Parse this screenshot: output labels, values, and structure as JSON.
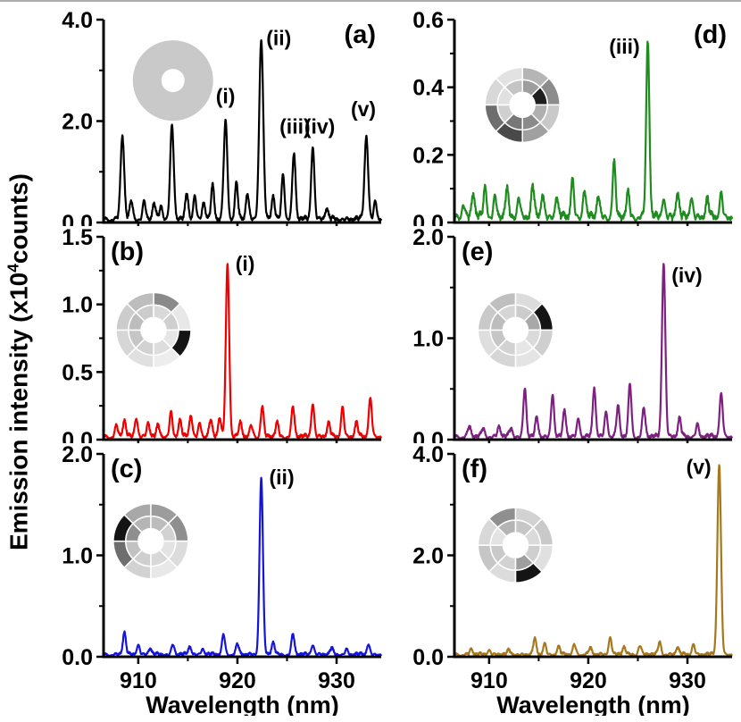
{
  "figure": {
    "x_axis_label": "Wavelength (nm)",
    "ylabel": "Emission intensity (x10^4 counts)",
    "y_axis_label": {
      "pre": "Emission intensity (x10",
      "sup": "4",
      "post": "counts)"
    },
    "background": "#ffffff",
    "axis_color": "#000000"
  },
  "chart_data": [
    {
      "id": "a",
      "type": "line",
      "letter": "(a)",
      "letter_pos": "tr",
      "color": "#000000",
      "x_range": [
        906.5,
        934.5
      ],
      "x_ticks": [
        {
          "v": 910,
          "label": "910"
        },
        {
          "v": 920,
          "label": "920"
        },
        {
          "v": 930,
          "label": "930"
        }
      ],
      "show_x_tick_labels": false,
      "ylim": [
        0,
        4.0
      ],
      "y_ticks": [
        {
          "v": 0,
          "label": "0.0"
        },
        {
          "v": 2,
          "label": "2.0"
        },
        {
          "v": 4,
          "label": "4.0"
        }
      ],
      "noise": 0.09,
      "peaks": [
        {
          "x": 908.4,
          "h": 1.65,
          "w": 0.18
        },
        {
          "x": 909.3,
          "h": 0.35,
          "w": 0.15
        },
        {
          "x": 910.6,
          "h": 0.35,
          "w": 0.15
        },
        {
          "x": 911.6,
          "h": 0.3,
          "w": 0.15
        },
        {
          "x": 912.3,
          "h": 0.25,
          "w": 0.15
        },
        {
          "x": 913.4,
          "h": 1.85,
          "w": 0.18
        },
        {
          "x": 914.9,
          "h": 0.5,
          "w": 0.15
        },
        {
          "x": 915.7,
          "h": 0.45,
          "w": 0.15
        },
        {
          "x": 916.6,
          "h": 0.35,
          "w": 0.15
        },
        {
          "x": 917.5,
          "h": 0.65,
          "w": 0.15
        },
        {
          "x": 918.8,
          "h": 1.95,
          "w": 0.18
        },
        {
          "x": 919.9,
          "h": 0.7,
          "w": 0.15
        },
        {
          "x": 921.0,
          "h": 0.5,
          "w": 0.15
        },
        {
          "x": 922.4,
          "h": 3.55,
          "w": 0.2
        },
        {
          "x": 923.6,
          "h": 0.45,
          "w": 0.15
        },
        {
          "x": 924.6,
          "h": 0.9,
          "w": 0.15
        },
        {
          "x": 925.7,
          "h": 1.3,
          "w": 0.16
        },
        {
          "x": 927.6,
          "h": 1.45,
          "w": 0.16
        },
        {
          "x": 929.0,
          "h": 0.2,
          "w": 0.15
        },
        {
          "x": 933.0,
          "h": 1.65,
          "w": 0.18
        },
        {
          "x": 933.9,
          "h": 0.35,
          "w": 0.15
        }
      ],
      "peak_labels": [
        {
          "text": "(i)",
          "x": 918.8,
          "y": 2.35,
          "anchor": "middle"
        },
        {
          "text": "(ii)",
          "x": 922.9,
          "y": 3.5,
          "anchor": "start"
        },
        {
          "text": "(iii)",
          "x": 925.8,
          "y": 1.75,
          "anchor": "middle"
        },
        {
          "text": "(iv)",
          "x": 928.3,
          "y": 1.75,
          "anchor": "middle"
        },
        {
          "text": "(v)",
          "x": 932.7,
          "y": 2.1,
          "anchor": "middle"
        }
      ],
      "inset": {
        "cx": 0.25,
        "cy": 0.3,
        "r_outer": 45,
        "r_inner": 13,
        "uniform": "#c9c9c9"
      }
    },
    {
      "id": "b",
      "type": "line",
      "letter": "(b)",
      "letter_pos": "tl",
      "color": "#ee0000",
      "x_range": [
        906.5,
        934.5
      ],
      "x_ticks": [
        {
          "v": 910,
          "label": "910"
        },
        {
          "v": 920,
          "label": "920"
        },
        {
          "v": 930,
          "label": "930"
        }
      ],
      "show_x_tick_labels": false,
      "ylim": [
        0,
        1.5
      ],
      "y_ticks": [
        {
          "v": 0,
          "label": "0.0"
        },
        {
          "v": 0.5,
          "label": "0.5"
        },
        {
          "v": 1.0,
          "label": "1.0"
        },
        {
          "v": 1.5,
          "label": "1.5"
        }
      ],
      "noise": 0.03,
      "peaks": [
        {
          "x": 907.8,
          "h": 0.08,
          "w": 0.15
        },
        {
          "x": 908.6,
          "h": 0.12,
          "w": 0.15
        },
        {
          "x": 909.8,
          "h": 0.14,
          "w": 0.15
        },
        {
          "x": 911.0,
          "h": 0.1,
          "w": 0.15
        },
        {
          "x": 912.0,
          "h": 0.08,
          "w": 0.15
        },
        {
          "x": 913.3,
          "h": 0.18,
          "w": 0.15
        },
        {
          "x": 914.2,
          "h": 0.12,
          "w": 0.15
        },
        {
          "x": 915.3,
          "h": 0.16,
          "w": 0.15
        },
        {
          "x": 916.2,
          "h": 0.1,
          "w": 0.15
        },
        {
          "x": 917.3,
          "h": 0.12,
          "w": 0.15
        },
        {
          "x": 918.2,
          "h": 0.14,
          "w": 0.15
        },
        {
          "x": 919.0,
          "h": 1.28,
          "w": 0.17
        },
        {
          "x": 920.3,
          "h": 0.1,
          "w": 0.15
        },
        {
          "x": 921.4,
          "h": 0.08,
          "w": 0.15
        },
        {
          "x": 922.5,
          "h": 0.22,
          "w": 0.15
        },
        {
          "x": 924.0,
          "h": 0.1,
          "w": 0.15
        },
        {
          "x": 925.6,
          "h": 0.22,
          "w": 0.15
        },
        {
          "x": 927.6,
          "h": 0.25,
          "w": 0.15
        },
        {
          "x": 929.2,
          "h": 0.1,
          "w": 0.15
        },
        {
          "x": 930.6,
          "h": 0.22,
          "w": 0.15
        },
        {
          "x": 932.0,
          "h": 0.1,
          "w": 0.15
        },
        {
          "x": 933.4,
          "h": 0.28,
          "w": 0.16
        }
      ],
      "peak_labels": [
        {
          "text": "(i)",
          "x": 919.8,
          "y": 1.25,
          "anchor": "start"
        }
      ],
      "inset": {
        "cx": 0.18,
        "cy": 0.46,
        "r_outer": 42,
        "r_mid": 28,
        "r_inner": 14,
        "outer": [
          "#8a8a8a",
          "#e8e8e8",
          "#141414",
          "#ededed",
          "#e0e0e0",
          "#d6d6d6",
          "#cccccc",
          "#bdbdbd"
        ],
        "inner": [
          "#d9d9d9",
          "#cfcfcf",
          "#e6e6e6",
          "#dddddd",
          "#d2d2d2",
          "#c6c6c6",
          "#bdbdbd",
          "#cccccc"
        ]
      }
    },
    {
      "id": "c",
      "type": "line",
      "letter": "(c)",
      "letter_pos": "tl",
      "color": "#1414dc",
      "x_range": [
        906.5,
        934.5
      ],
      "x_ticks": [
        {
          "v": 910,
          "label": "910"
        },
        {
          "v": 920,
          "label": "920"
        },
        {
          "v": 930,
          "label": "930"
        }
      ],
      "show_x_tick_labels": true,
      "ylim": [
        0,
        2.0
      ],
      "y_ticks": [
        {
          "v": 0,
          "label": "0.0"
        },
        {
          "v": 1.0,
          "label": "1.0"
        },
        {
          "v": 2.0,
          "label": "2.0"
        }
      ],
      "noise": 0.03,
      "peaks": [
        {
          "x": 908.6,
          "h": 0.22,
          "w": 0.15
        },
        {
          "x": 910.0,
          "h": 0.1,
          "w": 0.15
        },
        {
          "x": 911.2,
          "h": 0.06,
          "w": 0.15
        },
        {
          "x": 913.5,
          "h": 0.1,
          "w": 0.15
        },
        {
          "x": 915.2,
          "h": 0.08,
          "w": 0.15
        },
        {
          "x": 916.5,
          "h": 0.06,
          "w": 0.15
        },
        {
          "x": 918.6,
          "h": 0.2,
          "w": 0.15
        },
        {
          "x": 920.0,
          "h": 0.1,
          "w": 0.15
        },
        {
          "x": 922.4,
          "h": 1.75,
          "w": 0.17
        },
        {
          "x": 923.6,
          "h": 0.12,
          "w": 0.15
        },
        {
          "x": 925.6,
          "h": 0.2,
          "w": 0.15
        },
        {
          "x": 927.6,
          "h": 0.1,
          "w": 0.15
        },
        {
          "x": 929.5,
          "h": 0.06,
          "w": 0.15
        },
        {
          "x": 931.0,
          "h": 0.05,
          "w": 0.15
        },
        {
          "x": 933.2,
          "h": 0.1,
          "w": 0.15
        }
      ],
      "peak_labels": [
        {
          "text": "(ii)",
          "x": 923.2,
          "y": 1.7,
          "anchor": "start"
        }
      ],
      "inset": {
        "cx": 0.17,
        "cy": 0.43,
        "r_outer": 42,
        "r_mid": 28,
        "r_inner": 14,
        "outer": [
          "#9c9c9c",
          "#8f8f8f",
          "#dcdcdc",
          "#e8e8e8",
          "#d2d2d2",
          "#6e6e6e",
          "#141414",
          "#a8a8a8"
        ],
        "inner": [
          "#bdbdbd",
          "#d2d2d2",
          "#e3e3e3",
          "#d8d8d8",
          "#cfcfcf",
          "#c2c2c2",
          "#8f8f8f",
          "#b5b5b5"
        ]
      }
    },
    {
      "id": "d",
      "type": "line",
      "letter": "(d)",
      "letter_pos": "tr",
      "color": "#1e8c1e",
      "x_range": [
        906.5,
        934.5
      ],
      "x_ticks": [
        {
          "v": 910,
          "label": "910"
        },
        {
          "v": 920,
          "label": "920"
        },
        {
          "v": 930,
          "label": "930"
        }
      ],
      "show_x_tick_labels": false,
      "ylim": [
        0,
        0.6
      ],
      "y_ticks": [
        {
          "v": 0,
          "label": "0.0"
        },
        {
          "v": 0.2,
          "label": "0.2"
        },
        {
          "v": 0.4,
          "label": "0.4"
        },
        {
          "v": 0.6,
          "label": "0.6"
        }
      ],
      "noise": 0.022,
      "peaks": [
        {
          "x": 907.4,
          "h": 0.04,
          "w": 0.15
        },
        {
          "x": 908.4,
          "h": 0.07,
          "w": 0.15
        },
        {
          "x": 909.6,
          "h": 0.09,
          "w": 0.15
        },
        {
          "x": 910.6,
          "h": 0.06,
          "w": 0.15
        },
        {
          "x": 911.8,
          "h": 0.08,
          "w": 0.15
        },
        {
          "x": 913.0,
          "h": 0.06,
          "w": 0.15
        },
        {
          "x": 914.4,
          "h": 0.09,
          "w": 0.15
        },
        {
          "x": 915.4,
          "h": 0.07,
          "w": 0.15
        },
        {
          "x": 916.8,
          "h": 0.06,
          "w": 0.15
        },
        {
          "x": 918.4,
          "h": 0.11,
          "w": 0.15
        },
        {
          "x": 919.6,
          "h": 0.08,
          "w": 0.15
        },
        {
          "x": 921.0,
          "h": 0.06,
          "w": 0.15
        },
        {
          "x": 922.6,
          "h": 0.16,
          "w": 0.15
        },
        {
          "x": 924.0,
          "h": 0.07,
          "w": 0.15
        },
        {
          "x": 926.0,
          "h": 0.52,
          "w": 0.16
        },
        {
          "x": 927.6,
          "h": 0.06,
          "w": 0.15
        },
        {
          "x": 929.0,
          "h": 0.07,
          "w": 0.15
        },
        {
          "x": 930.4,
          "h": 0.06,
          "w": 0.15
        },
        {
          "x": 932.0,
          "h": 0.05,
          "w": 0.15
        },
        {
          "x": 933.4,
          "h": 0.07,
          "w": 0.15
        }
      ],
      "peak_labels": [
        {
          "text": "(iii)",
          "x": 925.2,
          "y": 0.5,
          "anchor": "end"
        }
      ],
      "inset": {
        "cx": 0.245,
        "cy": 0.42,
        "r_outer": 42,
        "r_mid": 28,
        "r_inner": 14,
        "outer": [
          "#b5b5b5",
          "#8c8c8c",
          "#c9c9c9",
          "#a0a0a0",
          "#4a4a4a",
          "#6e6e6e",
          "#d8d8d8",
          "#e2e2e2"
        ],
        "inner": [
          "#9e9e9e",
          "#1f1f1f",
          "#b0b0b0",
          "#8a8a8a",
          "#777777",
          "#cfcfcf",
          "#e0e0e0",
          "#c4c4c4"
        ]
      }
    },
    {
      "id": "e",
      "type": "line",
      "letter": "(e)",
      "letter_pos": "tl",
      "color": "#7d2181",
      "x_range": [
        906.5,
        934.5
      ],
      "x_ticks": [
        {
          "v": 910,
          "label": "910"
        },
        {
          "v": 920,
          "label": "920"
        },
        {
          "v": 930,
          "label": "930"
        }
      ],
      "show_x_tick_labels": false,
      "ylim": [
        0,
        2.0
      ],
      "y_ticks": [
        {
          "v": 0,
          "label": "0.0"
        },
        {
          "v": 1.0,
          "label": "1.0"
        },
        {
          "v": 2.0,
          "label": "2.0"
        }
      ],
      "noise": 0.04,
      "peaks": [
        {
          "x": 908.0,
          "h": 0.1,
          "w": 0.15
        },
        {
          "x": 909.4,
          "h": 0.08,
          "w": 0.15
        },
        {
          "x": 911.0,
          "h": 0.1,
          "w": 0.15
        },
        {
          "x": 912.2,
          "h": 0.08,
          "w": 0.15
        },
        {
          "x": 913.6,
          "h": 0.48,
          "w": 0.15
        },
        {
          "x": 914.8,
          "h": 0.18,
          "w": 0.15
        },
        {
          "x": 916.4,
          "h": 0.42,
          "w": 0.15
        },
        {
          "x": 917.6,
          "h": 0.25,
          "w": 0.15
        },
        {
          "x": 919.0,
          "h": 0.18,
          "w": 0.15
        },
        {
          "x": 920.6,
          "h": 0.48,
          "w": 0.15
        },
        {
          "x": 921.8,
          "h": 0.25,
          "w": 0.15
        },
        {
          "x": 923.0,
          "h": 0.3,
          "w": 0.15
        },
        {
          "x": 924.2,
          "h": 0.52,
          "w": 0.15
        },
        {
          "x": 925.6,
          "h": 0.28,
          "w": 0.15
        },
        {
          "x": 927.6,
          "h": 1.72,
          "w": 0.17
        },
        {
          "x": 929.2,
          "h": 0.18,
          "w": 0.15
        },
        {
          "x": 931.0,
          "h": 0.12,
          "w": 0.15
        },
        {
          "x": 933.4,
          "h": 0.42,
          "w": 0.16
        }
      ],
      "peak_labels": [
        {
          "text": "(iv)",
          "x": 928.4,
          "y": 1.55,
          "anchor": "start"
        }
      ],
      "inset": {
        "cx": 0.22,
        "cy": 0.46,
        "r_outer": 42,
        "r_mid": 28,
        "r_inner": 14,
        "outer": [
          "#dcdcdc",
          "#141414",
          "#cfcfcf",
          "#e4e4e4",
          "#d6d6d6",
          "#dedede",
          "#c9c9c9",
          "#bfbfbf"
        ],
        "inner": [
          "#cccccc",
          "#a8a8a8",
          "#dadada",
          "#e6e6e6",
          "#d2d2d2",
          "#c6c6c6",
          "#bdbdbd",
          "#d5d5d5"
        ]
      }
    },
    {
      "id": "f",
      "type": "line",
      "letter": "(f)",
      "letter_pos": "tl",
      "color": "#a6781e",
      "x_range": [
        906.5,
        934.5
      ],
      "x_ticks": [
        {
          "v": 910,
          "label": "910"
        },
        {
          "v": 920,
          "label": "920"
        },
        {
          "v": 930,
          "label": "930"
        }
      ],
      "show_x_tick_labels": true,
      "ylim": [
        0,
        4.0
      ],
      "y_ticks": [
        {
          "v": 0,
          "label": "0.0"
        },
        {
          "v": 2.0,
          "label": "2.0"
        },
        {
          "v": 4.0,
          "label": "4.0"
        }
      ],
      "noise": 0.06,
      "peaks": [
        {
          "x": 908.2,
          "h": 0.1,
          "w": 0.15
        },
        {
          "x": 910.0,
          "h": 0.1,
          "w": 0.15
        },
        {
          "x": 912.0,
          "h": 0.08,
          "w": 0.15
        },
        {
          "x": 914.6,
          "h": 0.3,
          "w": 0.15
        },
        {
          "x": 915.6,
          "h": 0.22,
          "w": 0.15
        },
        {
          "x": 917.0,
          "h": 0.15,
          "w": 0.15
        },
        {
          "x": 918.6,
          "h": 0.2,
          "w": 0.15
        },
        {
          "x": 920.2,
          "h": 0.12,
          "w": 0.15
        },
        {
          "x": 922.2,
          "h": 0.35,
          "w": 0.15
        },
        {
          "x": 923.6,
          "h": 0.15,
          "w": 0.15
        },
        {
          "x": 925.2,
          "h": 0.18,
          "w": 0.15
        },
        {
          "x": 927.2,
          "h": 0.25,
          "w": 0.15
        },
        {
          "x": 929.0,
          "h": 0.14,
          "w": 0.15
        },
        {
          "x": 930.6,
          "h": 0.2,
          "w": 0.15
        },
        {
          "x": 933.2,
          "h": 3.75,
          "w": 0.18
        }
      ],
      "peak_labels": [
        {
          "text": "(v)",
          "x": 932.4,
          "y": 3.6,
          "anchor": "end"
        }
      ],
      "inset": {
        "cx": 0.22,
        "cy": 0.45,
        "r_outer": 42,
        "r_mid": 28,
        "r_inner": 14,
        "outer": [
          "#d2d2d2",
          "#c9c9c9",
          "#e0e0e0",
          "#141414",
          "#dcdcdc",
          "#c6c6c6",
          "#d8d8d8",
          "#8f8f8f"
        ],
        "inner": [
          "#c6c6c6",
          "#dadada",
          "#cfcfcf",
          "#9e9e9e",
          "#d2d2d2",
          "#c9c9c9",
          "#e3e3e3",
          "#b5b5b5"
        ]
      }
    }
  ]
}
